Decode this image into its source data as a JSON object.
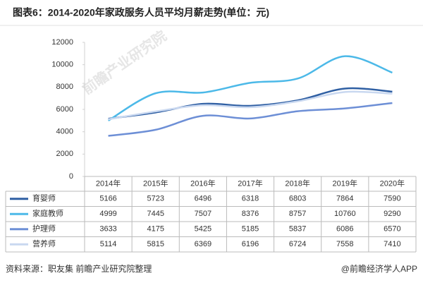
{
  "chart_data": {
    "type": "line",
    "title": "图表6：2014-2020年家政服务人员平均月薪走势(单位：元)",
    "categories": [
      "2014年",
      "2015年",
      "2016年",
      "2017年",
      "2018年",
      "2019年",
      "2020年"
    ],
    "series": [
      {
        "name": "育婴师",
        "color": "#2f5fa3",
        "values": [
          5166,
          5723,
          6496,
          6318,
          6803,
          7864,
          7590
        ]
      },
      {
        "name": "家庭教师",
        "color": "#4cb9e8",
        "values": [
          4999,
          7445,
          7507,
          8376,
          8757,
          10760,
          9290
        ]
      },
      {
        "name": "护理师",
        "color": "#6d8fd6",
        "values": [
          3633,
          4175,
          5425,
          5185,
          5837,
          6086,
          6570
        ]
      },
      {
        "name": "营养师",
        "color": "#c9d8f0",
        "values": [
          5114,
          5815,
          6369,
          6196,
          6724,
          7558,
          7410
        ]
      }
    ],
    "ylim": [
      0,
      12000
    ],
    "yticks": [
      0,
      2000,
      4000,
      6000,
      8000,
      10000,
      12000
    ],
    "source": "资料来源：职友集 前瞻产业研究院整理",
    "credit": "@前瞻经济学人APP",
    "watermark": "前瞻产业研究院"
  }
}
